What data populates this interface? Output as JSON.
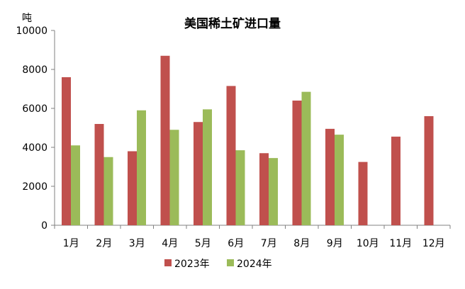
{
  "chart_data": {
    "type": "bar",
    "title": "美国稀土矿进口量",
    "unit_label": "吨",
    "categories": [
      "1月",
      "2月",
      "3月",
      "4月",
      "5月",
      "6月",
      "7月",
      "8月",
      "9月",
      "10月",
      "11月",
      "12月"
    ],
    "series": [
      {
        "name": "2023年",
        "color": "#c0504d",
        "values": [
          7600,
          5200,
          3800,
          8700,
          5300,
          7150,
          3700,
          6400,
          4950,
          3250,
          4550,
          5600
        ]
      },
      {
        "name": "2024年",
        "color": "#9bbb59",
        "values": [
          4100,
          3500,
          5900,
          4900,
          5950,
          3850,
          3450,
          6850,
          4650,
          null,
          null,
          null
        ]
      }
    ],
    "ylim": [
      0,
      10000
    ],
    "yticks": [
      "0",
      "2000",
      "4000",
      "6000",
      "8000",
      "10000"
    ],
    "grid": false,
    "legend_position": "bottom"
  }
}
